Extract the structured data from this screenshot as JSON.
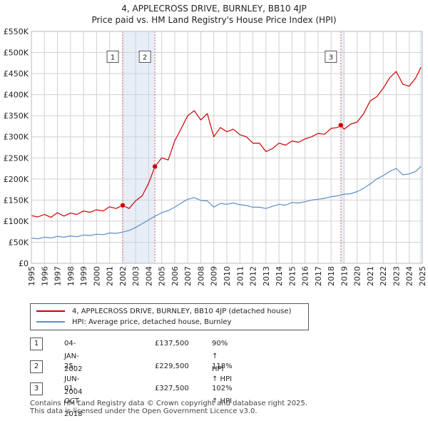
{
  "header": {
    "title_line1": "4, APPLECROSS DRIVE, BURNLEY, BB10 4JP",
    "title_line2": "Price paid vs. HM Land Registry's House Price Index (HPI)"
  },
  "colors": {
    "property": "#cc0000",
    "hpi": "#5b8ec8",
    "shade": "#e8eef8",
    "grid": "#d0d0d0",
    "vline": "#e06666"
  },
  "legend": {
    "property_label": "4, APPLECROSS DRIVE, BURNLEY, BB10 4JP (detached house)",
    "hpi_label": "HPI: Average price, detached house, Burnley"
  },
  "sales": [
    {
      "num": "1",
      "date": "04-JAN-2002",
      "price": "£137,500",
      "hpi": "90% ↑ HPI"
    },
    {
      "num": "2",
      "date": "25-JUN-2004",
      "price": "£229,500",
      "hpi": "118% ↑ HPI"
    },
    {
      "num": "3",
      "date": "01-OCT-2018",
      "price": "£327,500",
      "hpi": "102% ↑ HPI"
    }
  ],
  "footer": {
    "line1": "Contains HM Land Registry data © Crown copyright and database right 2025.",
    "line2": "This data is licensed under the Open Government Licence v3.0."
  },
  "chart_data": {
    "type": "line",
    "title": "4, APPLECROSS DRIVE, BURNLEY, BB10 4JP — Price paid vs. HM Land Registry's House Price Index (HPI)",
    "xlabel": "",
    "ylabel": "",
    "xlim": [
      1995,
      2025
    ],
    "ylim": [
      0,
      550000
    ],
    "x_ticks": [
      "1995",
      "1996",
      "1997",
      "1998",
      "1999",
      "2000",
      "2001",
      "2002",
      "2003",
      "2004",
      "2005",
      "2006",
      "2007",
      "2008",
      "2009",
      "2010",
      "2011",
      "2012",
      "2013",
      "2014",
      "2015",
      "2016",
      "2017",
      "2018",
      "2019",
      "2020",
      "2021",
      "2022",
      "2023",
      "2024",
      "2025"
    ],
    "y_ticks": [
      {
        "value": 0,
        "label": "£0"
      },
      {
        "value": 50000,
        "label": "£50K"
      },
      {
        "value": 100000,
        "label": "£100K"
      },
      {
        "value": 150000,
        "label": "£150K"
      },
      {
        "value": 200000,
        "label": "£200K"
      },
      {
        "value": 250000,
        "label": "£250K"
      },
      {
        "value": 300000,
        "label": "£300K"
      },
      {
        "value": 350000,
        "label": "£350K"
      },
      {
        "value": 400000,
        "label": "£400K"
      },
      {
        "value": 450000,
        "label": "£450K"
      },
      {
        "value": 500000,
        "label": "£500K"
      },
      {
        "value": 550000,
        "label": "£550K"
      }
    ],
    "shaded_ranges": [
      [
        2002.0,
        2004.5
      ],
      [
        2018.75,
        2019.0
      ],
      [
        2024.8,
        2025.0
      ]
    ],
    "sale_markers": [
      {
        "label": "1",
        "x": 2002.01,
        "y": 137500
      },
      {
        "label": "2",
        "x": 2004.48,
        "y": 229500
      },
      {
        "label": "3",
        "x": 2018.75,
        "y": 327500
      }
    ],
    "series": [
      {
        "name": "4, APPLECROSS DRIVE, BURNLEY, BB10 4JP (detached house)",
        "x": [
          1995.0,
          1995.5,
          1996.0,
          1996.5,
          1997.0,
          1997.5,
          1998.0,
          1998.5,
          1999.0,
          1999.5,
          2000.0,
          2000.5,
          2001.0,
          2001.5,
          2002.0,
          2002.5,
          2003.0,
          2003.5,
          2004.0,
          2004.48,
          2005.0,
          2005.5,
          2006.0,
          2006.5,
          2007.0,
          2007.5,
          2008.0,
          2008.5,
          2009.0,
          2009.5,
          2010.0,
          2010.5,
          2011.0,
          2011.5,
          2012.0,
          2012.5,
          2013.0,
          2013.5,
          2014.0,
          2014.5,
          2015.0,
          2015.5,
          2016.0,
          2016.5,
          2017.0,
          2017.5,
          2018.0,
          2018.5,
          2018.75,
          2019.0,
          2019.5,
          2020.0,
          2020.5,
          2021.0,
          2021.5,
          2022.0,
          2022.5,
          2023.0,
          2023.5,
          2024.0,
          2024.5,
          2024.9
        ],
        "y": [
          113000,
          110000,
          116000,
          109000,
          120000,
          112000,
          119000,
          116000,
          124000,
          121000,
          127000,
          124000,
          134000,
          130000,
          137500,
          130000,
          148000,
          160000,
          190000,
          229500,
          250000,
          245000,
          290000,
          320000,
          350000,
          362000,
          340000,
          355000,
          300000,
          322000,
          312000,
          318000,
          305000,
          300000,
          285000,
          285000,
          265000,
          272000,
          285000,
          280000,
          290000,
          287000,
          295000,
          300000,
          308000,
          306000,
          320000,
          322000,
          327500,
          318000,
          330000,
          335000,
          355000,
          385000,
          395000,
          415000,
          440000,
          455000,
          425000,
          420000,
          440000,
          465000
        ]
      },
      {
        "name": "HPI: Average price, detached house, Burnley",
        "x": [
          1995.0,
          1995.5,
          1996.0,
          1996.5,
          1997.0,
          1997.5,
          1998.0,
          1998.5,
          1999.0,
          1999.5,
          2000.0,
          2000.5,
          2001.0,
          2001.5,
          2002.0,
          2002.5,
          2003.0,
          2003.5,
          2004.0,
          2004.5,
          2005.0,
          2005.5,
          2006.0,
          2006.5,
          2007.0,
          2007.5,
          2008.0,
          2008.5,
          2009.0,
          2009.5,
          2010.0,
          2010.5,
          2011.0,
          2011.5,
          2012.0,
          2012.5,
          2013.0,
          2013.5,
          2014.0,
          2014.5,
          2015.0,
          2015.5,
          2016.0,
          2016.5,
          2017.0,
          2017.5,
          2018.0,
          2018.5,
          2019.0,
          2019.5,
          2020.0,
          2020.5,
          2021.0,
          2021.5,
          2022.0,
          2022.5,
          2023.0,
          2023.5,
          2024.0,
          2024.5,
          2024.9
        ],
        "y": [
          60000,
          58000,
          62000,
          60000,
          64000,
          62000,
          65000,
          63000,
          67000,
          66000,
          69000,
          68000,
          72000,
          71000,
          74000,
          78000,
          85000,
          94000,
          103000,
          112000,
          120000,
          125000,
          133000,
          143000,
          152000,
          156000,
          149000,
          148000,
          133000,
          142000,
          140000,
          143000,
          139000,
          137000,
          133000,
          133000,
          130000,
          135000,
          140000,
          138000,
          144000,
          143000,
          146000,
          150000,
          152000,
          154000,
          158000,
          160000,
          164000,
          165000,
          170000,
          178000,
          188000,
          200000,
          208000,
          218000,
          225000,
          210000,
          212000,
          218000,
          230000
        ]
      }
    ]
  }
}
